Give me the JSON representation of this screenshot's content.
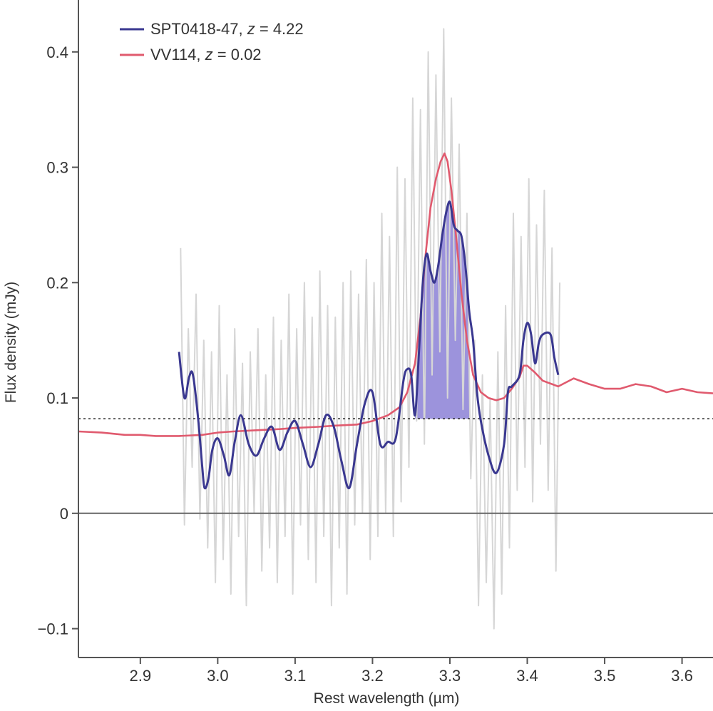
{
  "chart_data": {
    "type": "line",
    "xlabel": "Rest wavelength (µm)",
    "ylabel": "Flux density (mJy)",
    "xlim": [
      2.82,
      3.64
    ],
    "ylim": [
      -0.125,
      0.445
    ],
    "x_ticks": [
      {
        "value": 2.9,
        "label": "2.9"
      },
      {
        "value": 3.0,
        "label": "3.0"
      },
      {
        "value": 3.1,
        "label": "3.1"
      },
      {
        "value": 3.2,
        "label": "3.2"
      },
      {
        "value": 3.3,
        "label": "3.3"
      },
      {
        "value": 3.4,
        "label": "3.4"
      },
      {
        "value": 3.5,
        "label": "3.5"
      },
      {
        "value": 3.6,
        "label": "3.6"
      }
    ],
    "y_ticks": [
      {
        "value": -0.1,
        "label": "−0.1"
      },
      {
        "value": 0,
        "label": "0"
      },
      {
        "value": 0.1,
        "label": "0.1"
      },
      {
        "value": 0.2,
        "label": "0.2"
      },
      {
        "value": 0.3,
        "label": "0.3"
      },
      {
        "value": 0.4,
        "label": "0.4"
      }
    ],
    "zero_line": 0,
    "continuum_level": 0.082,
    "shaded_region": {
      "x_start": 3.255,
      "x_end": 3.325
    },
    "grid": false,
    "legend_position": "top-left",
    "series": [
      {
        "name": "SPT0418-47, z = 4.22",
        "legend_name": "SPT0418-47, ",
        "legend_z": "z",
        "legend_value": " = 4.22",
        "color": "#3a3890",
        "x": [
          2.95,
          2.957,
          2.963,
          2.968,
          2.975,
          2.98,
          2.983,
          2.988,
          2.993,
          3.0,
          3.008,
          3.015,
          3.022,
          3.03,
          3.04,
          3.05,
          3.06,
          3.07,
          3.08,
          3.09,
          3.1,
          3.11,
          3.12,
          3.13,
          3.14,
          3.15,
          3.16,
          3.17,
          3.18,
          3.19,
          3.2,
          3.21,
          3.22,
          3.23,
          3.24,
          3.245,
          3.25,
          3.255,
          3.26,
          3.265,
          3.27,
          3.275,
          3.28,
          3.285,
          3.29,
          3.295,
          3.3,
          3.305,
          3.31,
          3.315,
          3.32,
          3.325,
          3.33,
          3.335,
          3.34,
          3.35,
          3.36,
          3.37,
          3.375,
          3.38,
          3.39,
          3.395,
          3.4,
          3.405,
          3.41,
          3.415,
          3.42,
          3.43,
          3.435,
          3.44
        ],
        "y": [
          0.14,
          0.1,
          0.118,
          0.12,
          0.08,
          0.04,
          0.022,
          0.03,
          0.055,
          0.065,
          0.05,
          0.033,
          0.062,
          0.085,
          0.06,
          0.05,
          0.065,
          0.075,
          0.055,
          0.07,
          0.08,
          0.06,
          0.04,
          0.06,
          0.085,
          0.075,
          0.045,
          0.022,
          0.06,
          0.095,
          0.105,
          0.06,
          0.062,
          0.065,
          0.115,
          0.125,
          0.12,
          0.085,
          0.14,
          0.2,
          0.225,
          0.21,
          0.2,
          0.215,
          0.24,
          0.26,
          0.27,
          0.25,
          0.245,
          0.24,
          0.215,
          0.175,
          0.15,
          0.105,
          0.08,
          0.05,
          0.035,
          0.06,
          0.105,
          0.11,
          0.12,
          0.15,
          0.165,
          0.155,
          0.13,
          0.148,
          0.155,
          0.155,
          0.135,
          0.12
        ]
      },
      {
        "name": "VV114, z = 0.02",
        "legend_name": "VV114, ",
        "legend_z": "z",
        "legend_value": " = 0.02",
        "color": "#e05a6e",
        "x": [
          2.82,
          2.85,
          2.88,
          2.9,
          2.92,
          2.95,
          2.98,
          3.0,
          3.02,
          3.05,
          3.08,
          3.1,
          3.13,
          3.15,
          3.18,
          3.2,
          3.22,
          3.235,
          3.245,
          3.255,
          3.262,
          3.268,
          3.275,
          3.282,
          3.288,
          3.293,
          3.297,
          3.302,
          3.308,
          3.315,
          3.322,
          3.33,
          3.34,
          3.35,
          3.36,
          3.37,
          3.38,
          3.39,
          3.395,
          3.4,
          3.41,
          3.42,
          3.44,
          3.46,
          3.48,
          3.5,
          3.52,
          3.54,
          3.56,
          3.58,
          3.6,
          3.62,
          3.64
        ],
        "y": [
          0.071,
          0.07,
          0.068,
          0.068,
          0.067,
          0.067,
          0.068,
          0.07,
          0.071,
          0.072,
          0.073,
          0.074,
          0.075,
          0.076,
          0.077,
          0.08,
          0.085,
          0.092,
          0.105,
          0.13,
          0.17,
          0.22,
          0.265,
          0.29,
          0.305,
          0.312,
          0.305,
          0.28,
          0.24,
          0.19,
          0.15,
          0.12,
          0.105,
          0.1,
          0.098,
          0.1,
          0.108,
          0.118,
          0.128,
          0.128,
          0.122,
          0.115,
          0.11,
          0.117,
          0.112,
          0.108,
          0.108,
          0.112,
          0.11,
          0.105,
          0.108,
          0.105,
          0.104
        ]
      },
      {
        "color": "#d6d6d6",
        "x": [
          2.952,
          2.957,
          2.962,
          2.967,
          2.972,
          2.977,
          2.982,
          2.987,
          2.992,
          2.997,
          3.002,
          3.007,
          3.012,
          3.017,
          3.022,
          3.027,
          3.032,
          3.037,
          3.042,
          3.047,
          3.052,
          3.057,
          3.062,
          3.067,
          3.072,
          3.077,
          3.082,
          3.087,
          3.092,
          3.097,
          3.102,
          3.107,
          3.112,
          3.117,
          3.122,
          3.127,
          3.132,
          3.137,
          3.142,
          3.147,
          3.152,
          3.157,
          3.162,
          3.167,
          3.172,
          3.177,
          3.182,
          3.187,
          3.192,
          3.197,
          3.202,
          3.207,
          3.212,
          3.217,
          3.222,
          3.227,
          3.232,
          3.237,
          3.242,
          3.247,
          3.252,
          3.257,
          3.262,
          3.267,
          3.272,
          3.277,
          3.282,
          3.287,
          3.292,
          3.297,
          3.302,
          3.307,
          3.312,
          3.317,
          3.322,
          3.327,
          3.332,
          3.337,
          3.342,
          3.347,
          3.352,
          3.357,
          3.362,
          3.367,
          3.372,
          3.377,
          3.382,
          3.387,
          3.392,
          3.397,
          3.402,
          3.407,
          3.412,
          3.417,
          3.422,
          3.427,
          3.432,
          3.437,
          3.442
        ],
        "y": [
          0.23,
          -0.01,
          0.16,
          0.04,
          0.19,
          -0.005,
          0.15,
          -0.03,
          0.14,
          -0.06,
          0.18,
          -0.04,
          0.12,
          -0.07,
          0.16,
          -0.02,
          0.13,
          -0.08,
          0.14,
          0.0,
          0.16,
          -0.05,
          0.12,
          -0.03,
          0.17,
          -0.06,
          0.15,
          -0.02,
          0.19,
          -0.07,
          0.16,
          -0.01,
          0.2,
          -0.04,
          0.17,
          -0.06,
          0.21,
          -0.02,
          0.18,
          -0.08,
          0.17,
          -0.03,
          0.2,
          -0.07,
          0.21,
          -0.01,
          0.19,
          0.0,
          0.22,
          -0.04,
          0.2,
          -0.02,
          0.26,
          0.0,
          0.24,
          -0.02,
          0.3,
          0.01,
          0.29,
          0.04,
          0.36,
          0.08,
          0.35,
          0.06,
          0.4,
          0.12,
          0.38,
          0.14,
          0.42,
          0.1,
          0.36,
          0.15,
          0.32,
          0.09,
          0.26,
          0.03,
          0.15,
          -0.08,
          0.12,
          -0.06,
          0.1,
          -0.1,
          0.14,
          -0.07,
          0.18,
          -0.03,
          0.26,
          0.02,
          0.24,
          0.04,
          0.29,
          0.01,
          0.25,
          0.06,
          0.28,
          0.02,
          0.23,
          -0.05,
          0.2
        ]
      }
    ]
  }
}
